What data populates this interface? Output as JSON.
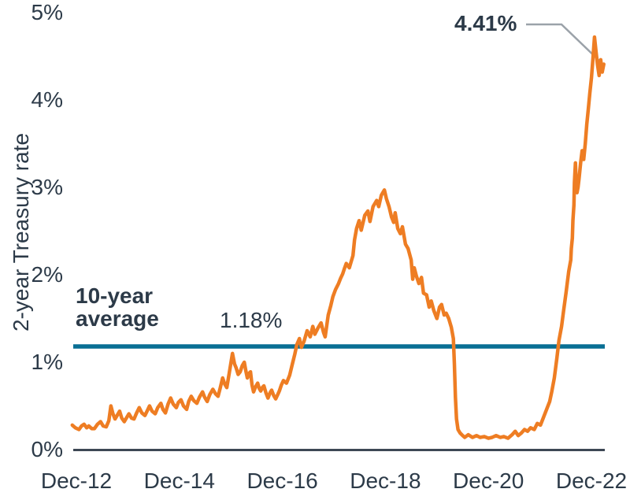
{
  "colors": {
    "series_orange": "#ee7d23",
    "average_teal": "#086f94",
    "text_navy": "#2c3a48",
    "axis_gray": "#3d4854",
    "callout_gray": "#9ba2a9",
    "background": "#ffffff"
  },
  "chart_data": {
    "type": "line",
    "title": "",
    "xlabel": "",
    "ylabel": "2-year Treasury rate",
    "ylim": [
      0,
      5
    ],
    "grid": false,
    "legend_position": "none",
    "y_ticks": [
      {
        "label": "0%",
        "value": 0
      },
      {
        "label": "1%",
        "value": 1
      },
      {
        "label": "2%",
        "value": 2
      },
      {
        "label": "3%",
        "value": 3
      },
      {
        "label": "4%",
        "value": 4
      },
      {
        "label": "5%",
        "value": 5
      }
    ],
    "x_ticks": [
      {
        "label": "Dec-12",
        "year": 2012.92
      },
      {
        "label": "Dec-14",
        "year": 2014.92
      },
      {
        "label": "Dec-16",
        "year": 2016.92
      },
      {
        "label": "Dec-18",
        "year": 2018.92
      },
      {
        "label": "Dec-20",
        "year": 2020.92
      },
      {
        "label": "Dec-22",
        "year": 2022.92
      }
    ],
    "average_line": {
      "label": "10-year average",
      "value": 1.18,
      "value_label": "1.18%"
    },
    "end_annotation": {
      "label": "4.41%",
      "value": 4.41
    },
    "series": [
      {
        "name": "2-year Treasury rate",
        "points": [
          [
            2012.84,
            0.28
          ],
          [
            2012.9,
            0.25
          ],
          [
            2012.97,
            0.23
          ],
          [
            2013.02,
            0.27
          ],
          [
            2013.07,
            0.29
          ],
          [
            2013.12,
            0.25
          ],
          [
            2013.16,
            0.27
          ],
          [
            2013.22,
            0.24
          ],
          [
            2013.27,
            0.24
          ],
          [
            2013.33,
            0.29
          ],
          [
            2013.39,
            0.32
          ],
          [
            2013.44,
            0.27
          ],
          [
            2013.5,
            0.26
          ],
          [
            2013.55,
            0.33
          ],
          [
            2013.59,
            0.5
          ],
          [
            2013.63,
            0.41
          ],
          [
            2013.67,
            0.35
          ],
          [
            2013.72,
            0.4
          ],
          [
            2013.76,
            0.44
          ],
          [
            2013.8,
            0.36
          ],
          [
            2013.85,
            0.32
          ],
          [
            2013.9,
            0.37
          ],
          [
            2013.94,
            0.41
          ],
          [
            2013.99,
            0.36
          ],
          [
            2014.04,
            0.35
          ],
          [
            2014.09,
            0.42
          ],
          [
            2014.14,
            0.48
          ],
          [
            2014.19,
            0.42
          ],
          [
            2014.25,
            0.39
          ],
          [
            2014.3,
            0.45
          ],
          [
            2014.34,
            0.5
          ],
          [
            2014.39,
            0.44
          ],
          [
            2014.45,
            0.41
          ],
          [
            2014.5,
            0.48
          ],
          [
            2014.56,
            0.53
          ],
          [
            2014.6,
            0.46
          ],
          [
            2014.65,
            0.42
          ],
          [
            2014.7,
            0.52
          ],
          [
            2014.75,
            0.59
          ],
          [
            2014.8,
            0.52
          ],
          [
            2014.86,
            0.48
          ],
          [
            2014.9,
            0.54
          ],
          [
            2014.95,
            0.57
          ],
          [
            2015.0,
            0.5
          ],
          [
            2015.06,
            0.46
          ],
          [
            2015.1,
            0.55
          ],
          [
            2015.15,
            0.61
          ],
          [
            2015.2,
            0.56
          ],
          [
            2015.26,
            0.53
          ],
          [
            2015.31,
            0.6
          ],
          [
            2015.37,
            0.66
          ],
          [
            2015.41,
            0.6
          ],
          [
            2015.46,
            0.55
          ],
          [
            2015.51,
            0.63
          ],
          [
            2015.57,
            0.69
          ],
          [
            2015.62,
            0.64
          ],
          [
            2015.67,
            0.61
          ],
          [
            2015.71,
            0.7
          ],
          [
            2015.76,
            0.82
          ],
          [
            2015.8,
            0.75
          ],
          [
            2015.84,
            0.71
          ],
          [
            2015.89,
            0.88
          ],
          [
            2015.95,
            1.1
          ],
          [
            2015.99,
            0.98
          ],
          [
            2016.02,
            0.94
          ],
          [
            2016.06,
            0.86
          ],
          [
            2016.1,
            0.89
          ],
          [
            2016.14,
            0.96
          ],
          [
            2016.18,
            1.0
          ],
          [
            2016.21,
            0.9
          ],
          [
            2016.24,
            0.82
          ],
          [
            2016.27,
            0.87
          ],
          [
            2016.3,
            0.89
          ],
          [
            2016.33,
            0.74
          ],
          [
            2016.36,
            0.66
          ],
          [
            2016.4,
            0.72
          ],
          [
            2016.44,
            0.76
          ],
          [
            2016.47,
            0.7
          ],
          [
            2016.5,
            0.67
          ],
          [
            2016.53,
            0.71
          ],
          [
            2016.56,
            0.73
          ],
          [
            2016.6,
            0.65
          ],
          [
            2016.64,
            0.59
          ],
          [
            2016.68,
            0.65
          ],
          [
            2016.71,
            0.68
          ],
          [
            2016.75,
            0.62
          ],
          [
            2016.79,
            0.58
          ],
          [
            2016.83,
            0.63
          ],
          [
            2016.86,
            0.67
          ],
          [
            2016.9,
            0.74
          ],
          [
            2016.94,
            0.79
          ],
          [
            2017.0,
            0.76
          ],
          [
            2017.06,
            0.85
          ],
          [
            2017.11,
            0.97
          ],
          [
            2017.16,
            1.09
          ],
          [
            2017.2,
            1.2
          ],
          [
            2017.25,
            1.27
          ],
          [
            2017.29,
            1.17
          ],
          [
            2017.34,
            1.24
          ],
          [
            2017.4,
            1.36
          ],
          [
            2017.46,
            1.29
          ],
          [
            2017.51,
            1.41
          ],
          [
            2017.55,
            1.32
          ],
          [
            2017.61,
            1.39
          ],
          [
            2017.67,
            1.45
          ],
          [
            2017.72,
            1.34
          ],
          [
            2017.75,
            1.29
          ],
          [
            2017.81,
            1.54
          ],
          [
            2017.86,
            1.65
          ],
          [
            2017.9,
            1.75
          ],
          [
            2017.95,
            1.83
          ],
          [
            2018.01,
            1.9
          ],
          [
            2018.05,
            1.96
          ],
          [
            2018.09,
            2.01
          ],
          [
            2018.13,
            2.08
          ],
          [
            2018.16,
            2.13
          ],
          [
            2018.22,
            2.08
          ],
          [
            2018.29,
            2.22
          ],
          [
            2018.32,
            2.4
          ],
          [
            2018.36,
            2.53
          ],
          [
            2018.41,
            2.62
          ],
          [
            2018.45,
            2.51
          ],
          [
            2018.52,
            2.68
          ],
          [
            2018.58,
            2.73
          ],
          [
            2018.62,
            2.61
          ],
          [
            2018.68,
            2.78
          ],
          [
            2018.75,
            2.85
          ],
          [
            2018.79,
            2.78
          ],
          [
            2018.84,
            2.91
          ],
          [
            2018.9,
            2.97
          ],
          [
            2018.94,
            2.87
          ],
          [
            2018.99,
            2.78
          ],
          [
            2019.04,
            2.66
          ],
          [
            2019.08,
            2.6
          ],
          [
            2019.11,
            2.71
          ],
          [
            2019.16,
            2.53
          ],
          [
            2019.21,
            2.47
          ],
          [
            2019.25,
            2.55
          ],
          [
            2019.31,
            2.35
          ],
          [
            2019.36,
            2.3
          ],
          [
            2019.42,
            2.17
          ],
          [
            2019.45,
            1.95
          ],
          [
            2019.48,
            2.08
          ],
          [
            2019.52,
            1.99
          ],
          [
            2019.57,
            1.9
          ],
          [
            2019.62,
            1.97
          ],
          [
            2019.66,
            1.79
          ],
          [
            2019.72,
            1.77
          ],
          [
            2019.77,
            1.63
          ],
          [
            2019.81,
            1.7
          ],
          [
            2019.86,
            1.59
          ],
          [
            2019.92,
            1.5
          ],
          [
            2019.97,
            1.63
          ],
          [
            2020.01,
            1.66
          ],
          [
            2020.06,
            1.54
          ],
          [
            2020.1,
            1.56
          ],
          [
            2020.15,
            1.5
          ],
          [
            2020.2,
            1.4
          ],
          [
            2020.24,
            1.27
          ],
          [
            2020.26,
            0.98
          ],
          [
            2020.28,
            0.6
          ],
          [
            2020.3,
            0.35
          ],
          [
            2020.33,
            0.23
          ],
          [
            2020.37,
            0.19
          ],
          [
            2020.42,
            0.16
          ],
          [
            2020.46,
            0.14
          ],
          [
            2020.53,
            0.17
          ],
          [
            2020.61,
            0.14
          ],
          [
            2020.69,
            0.16
          ],
          [
            2020.76,
            0.14
          ],
          [
            2020.84,
            0.15
          ],
          [
            2020.92,
            0.13
          ],
          [
            2020.99,
            0.14
          ],
          [
            2021.07,
            0.16
          ],
          [
            2021.15,
            0.14
          ],
          [
            2021.22,
            0.15
          ],
          [
            2021.3,
            0.13
          ],
          [
            2021.38,
            0.17
          ],
          [
            2021.44,
            0.21
          ],
          [
            2021.5,
            0.16
          ],
          [
            2021.56,
            0.19
          ],
          [
            2021.62,
            0.23
          ],
          [
            2021.68,
            0.21
          ],
          [
            2021.74,
            0.25
          ],
          [
            2021.81,
            0.23
          ],
          [
            2021.87,
            0.3
          ],
          [
            2021.93,
            0.28
          ],
          [
            2021.99,
            0.37
          ],
          [
            2022.05,
            0.46
          ],
          [
            2022.11,
            0.55
          ],
          [
            2022.15,
            0.66
          ],
          [
            2022.2,
            0.82
          ],
          [
            2022.25,
            1.05
          ],
          [
            2022.29,
            1.25
          ],
          [
            2022.34,
            1.41
          ],
          [
            2022.38,
            1.59
          ],
          [
            2022.43,
            1.81
          ],
          [
            2022.48,
            2.04
          ],
          [
            2022.52,
            2.17
          ],
          [
            2022.53,
            2.3
          ],
          [
            2022.55,
            2.42
          ],
          [
            2022.56,
            2.62
          ],
          [
            2022.58,
            2.8
          ],
          [
            2022.59,
            3.05
          ],
          [
            2022.61,
            3.28
          ],
          [
            2022.62,
            3.12
          ],
          [
            2022.64,
            2.94
          ],
          [
            2022.66,
            3.0
          ],
          [
            2022.68,
            3.1
          ],
          [
            2022.71,
            3.28
          ],
          [
            2022.74,
            3.42
          ],
          [
            2022.77,
            3.32
          ],
          [
            2022.8,
            3.5
          ],
          [
            2022.83,
            3.72
          ],
          [
            2022.86,
            3.9
          ],
          [
            2022.89,
            4.08
          ],
          [
            2022.92,
            4.25
          ],
          [
            2022.95,
            4.48
          ],
          [
            2022.98,
            4.72
          ],
          [
            2023.01,
            4.55
          ],
          [
            2023.04,
            4.4
          ],
          [
            2023.07,
            4.28
          ],
          [
            2023.1,
            4.46
          ],
          [
            2023.13,
            4.32
          ],
          [
            2023.16,
            4.41
          ]
        ]
      }
    ]
  }
}
